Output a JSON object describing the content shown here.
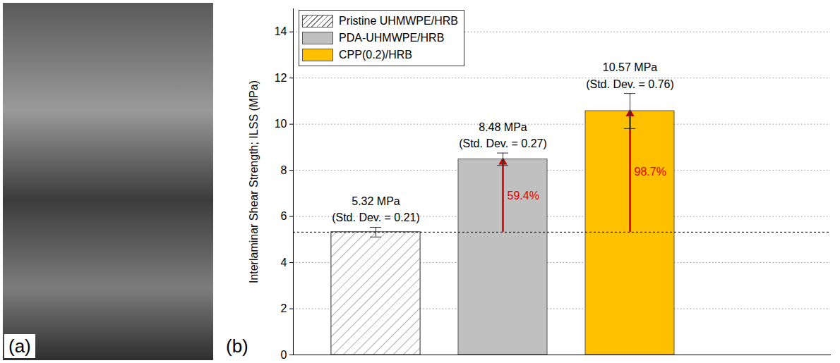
{
  "photo": {
    "panel_label": "(a)"
  },
  "chart_data": {
    "type": "bar",
    "panel_label": "(b)",
    "categories": [
      "Pristine UHMWPE/HRB",
      "PDA-UHMWPE/HRB",
      "CPP(0.2)/HRB"
    ],
    "values": [
      5.32,
      8.48,
      10.57
    ],
    "errors": [
      0.21,
      0.27,
      0.76
    ],
    "colors": [
      "#ffffff",
      "#c0c0c0",
      "#ffc000"
    ],
    "ylabel": "Interlaminar Shear Strength; ILSS (MPa)",
    "ylim": [
      0,
      15
    ],
    "yticks": [
      0,
      2,
      4,
      6,
      8,
      10,
      12,
      14
    ],
    "grid": true,
    "legend": "upper left",
    "tick_labels": "y",
    "annotations": [
      [
        "5.32 MPa",
        "(Std. Dev. = 0.21)"
      ],
      [
        "8.48 MPa",
        "(Std. Dev. = 0.27)"
      ],
      [
        "10.57 MPa",
        "(Std. Dev. = 0.76)"
      ]
    ],
    "increase_labels": [
      null,
      "59.4%",
      "98.7%"
    ]
  }
}
